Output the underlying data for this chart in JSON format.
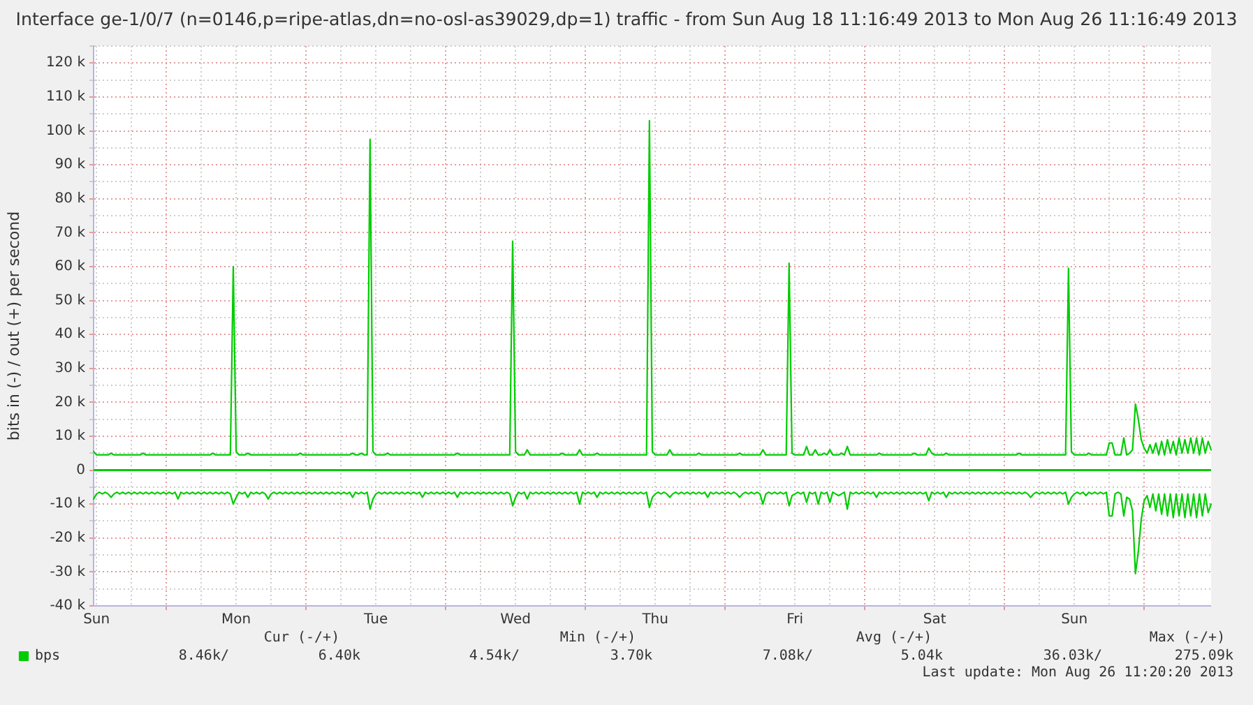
{
  "chart_data": {
    "type": "line",
    "title": "Interface ge-1/0/7 (n=0146,p=ripe-atlas,dn=no-osl-as39029,dp=1) traffic - from Sun Aug 18 11:16:49 2013 to Mon Aug 26 11:16:49 2013",
    "ylabel": "bits in (-) / out (+) per second",
    "annotations": [
      "Cur (-/+)",
      "Min (-/+)",
      "Avg (-/+)",
      "Max (-/+)",
      "8.46k/",
      "6.40k",
      "4.54k/",
      "3.70k",
      "7.08k/",
      "5.04k",
      "36.03k/",
      "275.09k",
      "Last update: Mon Aug 26 11:20:20 2013"
    ],
    "categories": [
      null,
      "Sun",
      null,
      null,
      null,
      null,
      null,
      null,
      null,
      null,
      null,
      null,
      null,
      null,
      null,
      null,
      null,
      null,
      null,
      null,
      null,
      null,
      null,
      null,
      null,
      null,
      null,
      null,
      null,
      null,
      null,
      null,
      null,
      null,
      null,
      null,
      null,
      null,
      null,
      null,
      null,
      null,
      null,
      null,
      null,
      null,
      null,
      null,
      null,
      "Mon",
      null,
      null,
      null,
      null,
      null,
      null,
      null,
      null,
      null,
      null,
      null,
      null,
      null,
      null,
      null,
      null,
      null,
      null,
      null,
      null,
      null,
      null,
      null,
      null,
      null,
      null,
      null,
      null,
      null,
      null,
      null,
      null,
      null,
      null,
      null,
      null,
      null,
      null,
      null,
      null,
      null,
      null,
      null,
      null,
      null,
      null,
      null,
      "Tue",
      null,
      null,
      null,
      null,
      null,
      null,
      null,
      null,
      null,
      null,
      null,
      null,
      null,
      null,
      null,
      null,
      null,
      null,
      null,
      null,
      null,
      null,
      null,
      null,
      null,
      null,
      null,
      null,
      null,
      null,
      null,
      null,
      null,
      null,
      null,
      null,
      null,
      null,
      null,
      null,
      null,
      null,
      null,
      null,
      null,
      null,
      null,
      "Wed",
      null,
      null,
      null,
      null,
      null,
      null,
      null,
      null,
      null,
      null,
      null,
      null,
      null,
      null,
      null,
      null,
      null,
      null,
      null,
      null,
      null,
      null,
      null,
      null,
      null,
      null,
      null,
      null,
      null,
      null,
      null,
      null,
      null,
      null,
      null,
      null,
      null,
      null,
      null,
      null,
      null,
      null,
      null,
      null,
      null,
      null,
      null,
      "Thu",
      null,
      null,
      null,
      null,
      null,
      null,
      null,
      null,
      null,
      null,
      null,
      null,
      null,
      null,
      null,
      null,
      null,
      null,
      null,
      null,
      null,
      null,
      null,
      null,
      null,
      null,
      null,
      null,
      null,
      null,
      null,
      null,
      null,
      null,
      null,
      null,
      null,
      null,
      null,
      null,
      null,
      null,
      null,
      null,
      null,
      null,
      null,
      "Fri",
      null,
      null,
      null,
      null,
      null,
      null,
      null,
      null,
      null,
      null,
      null,
      null,
      null,
      null,
      null,
      null,
      null,
      null,
      null,
      null,
      null,
      null,
      null,
      null,
      null,
      null,
      null,
      null,
      null,
      null,
      null,
      null,
      null,
      null,
      null,
      null,
      null,
      null,
      null,
      null,
      null,
      null,
      null,
      null,
      null,
      null,
      null,
      "Sat",
      null,
      null,
      null,
      null,
      null,
      null,
      null,
      null,
      null,
      null,
      null,
      null,
      null,
      null,
      null,
      null,
      null,
      null,
      null,
      null,
      null,
      null,
      null,
      null,
      null,
      null,
      null,
      null,
      null,
      null,
      null,
      null,
      null,
      null,
      null,
      null,
      null,
      null,
      null,
      null,
      null,
      null,
      null,
      null,
      null,
      null,
      null,
      "Sun",
      null,
      null,
      null,
      null,
      null,
      null,
      null,
      null,
      null,
      null,
      null,
      null,
      null,
      null,
      null,
      null,
      null,
      null,
      null,
      null,
      null,
      null,
      null,
      null,
      null,
      null,
      null,
      null,
      null,
      null,
      null,
      null,
      null,
      null,
      null,
      null,
      null,
      null,
      null,
      null,
      null,
      null,
      null,
      null,
      null,
      null,
      null
    ],
    "ylim": [
      -40000,
      125000
    ],
    "yticks": [
      {
        "value": -40000,
        "label": "-40 k"
      },
      {
        "value": -35000,
        "label": null
      },
      {
        "value": -30000,
        "label": "-30 k"
      },
      {
        "value": -25000,
        "label": null
      },
      {
        "value": -20000,
        "label": "-20 k"
      },
      {
        "value": -15000,
        "label": null
      },
      {
        "value": -10000,
        "label": "-10 k"
      },
      {
        "value": -5000,
        "label": null
      },
      0,
      {
        "value": 5000,
        "label": null
      },
      {
        "value": 10000,
        "label": "10 k"
      },
      {
        "value": 15000,
        "label": null
      },
      {
        "value": 20000,
        "label": "20 k"
      },
      {
        "value": 25000,
        "label": null
      },
      {
        "value": 30000,
        "label": "30 k"
      },
      {
        "value": 35000,
        "label": null
      },
      {
        "value": 40000,
        "label": "40 k"
      },
      {
        "value": 45000,
        "label": null
      },
      {
        "value": 50000,
        "label": "50 k"
      },
      {
        "value": 55000,
        "label": null
      },
      {
        "value": 60000,
        "label": "60 k"
      },
      {
        "value": 65000,
        "label": null
      },
      {
        "value": 70000,
        "label": "70 k"
      },
      {
        "value": 75000,
        "label": null
      },
      {
        "value": 80000,
        "label": "80 k"
      },
      {
        "value": 85000,
        "label": null
      },
      {
        "value": 90000,
        "label": "90 k"
      },
      {
        "value": 95000,
        "label": null
      },
      {
        "value": 100000,
        "label": "100 k"
      },
      {
        "value": 105000,
        "label": null
      },
      {
        "value": 110000,
        "label": "110 k"
      },
      {
        "value": 115000,
        "label": null
      },
      {
        "value": 120000,
        "label": "120 k"
      },
      {
        "value": 125000,
        "label": null
      }
    ],
    "grid": true,
    "legend": "bottom left",
    "marker": "none",
    "line_style": "solid",
    "ref_lines": [
      {
        "axis": "y",
        "value": 0,
        "color": "#00cc00"
      }
    ],
    "series": [
      {
        "name": "bps",
        "color": "#00cc00",
        "values": [
          5500,
          4500,
          4500,
          4500,
          4500,
          4500,
          5000,
          4500,
          4500,
          4500,
          4500,
          4500,
          4500,
          4500,
          4500,
          4500,
          4500,
          5000,
          4500,
          4500,
          4500,
          4500,
          4500,
          4500,
          4500,
          4500,
          4500,
          4500,
          4500,
          4500,
          4500,
          4500,
          4500,
          4500,
          4500,
          4500,
          4500,
          4500,
          4500,
          4500,
          4500,
          5000,
          4500,
          4500,
          4500,
          4500,
          4500,
          4500,
          60000,
          5500,
          4500,
          4500,
          4500,
          5000,
          4500,
          4500,
          4500,
          4500,
          4500,
          4500,
          4500,
          4500,
          4500,
          4500,
          4500,
          4500,
          4500,
          4500,
          4500,
          4500,
          4500,
          5000,
          4500,
          4500,
          4500,
          4500,
          4500,
          4500,
          4500,
          4500,
          4500,
          4500,
          4500,
          4500,
          4500,
          4500,
          4500,
          4500,
          4500,
          5000,
          4500,
          4500,
          5000,
          4500,
          4500,
          97500,
          5500,
          4500,
          4500,
          4500,
          4500,
          5000,
          4500,
          4500,
          4500,
          4500,
          4500,
          4500,
          4500,
          4500,
          4500,
          4500,
          4500,
          4500,
          4500,
          4500,
          4500,
          4500,
          4500,
          4500,
          4500,
          4500,
          4500,
          4500,
          4500,
          5000,
          4500,
          4500,
          4500,
          4500,
          4500,
          4500,
          4500,
          4500,
          4500,
          4500,
          4500,
          4500,
          4500,
          4500,
          4500,
          4500,
          4500,
          4500,
          67500,
          5500,
          4500,
          4500,
          4500,
          6000,
          4500,
          4500,
          4500,
          4500,
          4500,
          4500,
          4500,
          4500,
          4500,
          4500,
          4500,
          5000,
          4500,
          4500,
          4500,
          4500,
          4500,
          6000,
          4500,
          4500,
          4500,
          4500,
          4500,
          5000,
          4500,
          4500,
          4500,
          4500,
          4500,
          4500,
          4500,
          4500,
          4500,
          4500,
          4500,
          4500,
          4500,
          4500,
          4500,
          4500,
          4500,
          103000,
          5500,
          4500,
          4500,
          4500,
          4500,
          4500,
          6000,
          4500,
          4500,
          4500,
          4500,
          4500,
          4500,
          4500,
          4500,
          4500,
          5000,
          4500,
          4500,
          4500,
          4500,
          4500,
          4500,
          4500,
          4500,
          4500,
          4500,
          4500,
          4500,
          4500,
          5000,
          4500,
          4500,
          4500,
          4500,
          4500,
          4500,
          4500,
          6000,
          4500,
          4500,
          4500,
          4500,
          4500,
          4500,
          4500,
          4500,
          61000,
          5000,
          4500,
          4500,
          4500,
          4500,
          7000,
          4500,
          4500,
          6000,
          4500,
          4500,
          5000,
          4500,
          6000,
          4500,
          4500,
          4500,
          5000,
          4500,
          7000,
          4500,
          4500,
          4500,
          4500,
          4500,
          4500,
          4500,
          4500,
          4500,
          4500,
          5000,
          4500,
          4500,
          4500,
          4500,
          4500,
          4500,
          4500,
          4500,
          4500,
          4500,
          4500,
          5000,
          4500,
          4500,
          4500,
          4500,
          6500,
          5000,
          4500,
          4500,
          4500,
          4500,
          5000,
          4500,
          4500,
          4500,
          4500,
          4500,
          4500,
          4500,
          4500,
          4500,
          4500,
          4500,
          4500,
          4500,
          4500,
          4500,
          4500,
          4500,
          4500,
          4500,
          4500,
          4500,
          4500,
          4500,
          4500,
          5000,
          4500,
          4500,
          4500,
          4500,
          4500,
          4500,
          4500,
          4500,
          4500,
          4500,
          4500,
          4500,
          4500,
          4500,
          4500,
          4500,
          59500,
          5500,
          4500,
          4500,
          4500,
          4500,
          4500,
          5000,
          4500,
          4500,
          4500,
          4500,
          4500,
          4500,
          8000,
          8000,
          4500,
          4500,
          4500,
          9500,
          4500,
          5000,
          6000,
          19500,
          15000,
          9000,
          6500,
          5000,
          7500,
          5000,
          8000,
          4500,
          8500,
          4500,
          9000,
          5000,
          8500,
          4500,
          9500,
          5000,
          9000,
          5000,
          9500,
          5000,
          9500,
          4500,
          9500,
          5000,
          8500,
          6000
        ]
      },
      {
        "color": "#00cc00",
        "values": [
          -8500,
          -7000,
          -6500,
          -7000,
          -6500,
          -7000,
          -8000,
          -7000,
          -6500,
          -7000,
          -6500,
          -7000,
          -6500,
          -7000,
          -6500,
          -7000,
          -6500,
          -7000,
          -6500,
          -7000,
          -6500,
          -7000,
          -6500,
          -7000,
          -6500,
          -7000,
          -6500,
          -7000,
          -6500,
          -8500,
          -6500,
          -7000,
          -6500,
          -7000,
          -6500,
          -7000,
          -6500,
          -7000,
          -6500,
          -7000,
          -6500,
          -7000,
          -6500,
          -7000,
          -6500,
          -7000,
          -6500,
          -7000,
          -10000,
          -8000,
          -6500,
          -7000,
          -6500,
          -8000,
          -6500,
          -7000,
          -6500,
          -7000,
          -6500,
          -7000,
          -8500,
          -7000,
          -6500,
          -7000,
          -6500,
          -7000,
          -6500,
          -7000,
          -6500,
          -7000,
          -6500,
          -7000,
          -6500,
          -7000,
          -6500,
          -7000,
          -6500,
          -7000,
          -6500,
          -7000,
          -6500,
          -7000,
          -6500,
          -7000,
          -6500,
          -7000,
          -6500,
          -7000,
          -6500,
          -8000,
          -6500,
          -7000,
          -6500,
          -7000,
          -6500,
          -11500,
          -8500,
          -7000,
          -6500,
          -7000,
          -6500,
          -7000,
          -6500,
          -7000,
          -6500,
          -7000,
          -6500,
          -7000,
          -6500,
          -7000,
          -6500,
          -7000,
          -6500,
          -8000,
          -6500,
          -7000,
          -6500,
          -7000,
          -6500,
          -7000,
          -6500,
          -7000,
          -6500,
          -7000,
          -6500,
          -8000,
          -6500,
          -7000,
          -6500,
          -7000,
          -6500,
          -7000,
          -6500,
          -7000,
          -6500,
          -7000,
          -6500,
          -7000,
          -6500,
          -7000,
          -6500,
          -7000,
          -6500,
          -7000,
          -10500,
          -8000,
          -6500,
          -7000,
          -6500,
          -8500,
          -6500,
          -7000,
          -6500,
          -7000,
          -6500,
          -7000,
          -6500,
          -7000,
          -6500,
          -7000,
          -6500,
          -7000,
          -6500,
          -7000,
          -6500,
          -7000,
          -6500,
          -10000,
          -6500,
          -7000,
          -6500,
          -7000,
          -6500,
          -8000,
          -6500,
          -7000,
          -6500,
          -7000,
          -6500,
          -7000,
          -6500,
          -7000,
          -6500,
          -7000,
          -6500,
          -7000,
          -6500,
          -7000,
          -6500,
          -7000,
          -6500,
          -11000,
          -8000,
          -7000,
          -6500,
          -7000,
          -6500,
          -7000,
          -8000,
          -7000,
          -6500,
          -7000,
          -6500,
          -7000,
          -6500,
          -7000,
          -6500,
          -7000,
          -6500,
          -7000,
          -6500,
          -8000,
          -6500,
          -7000,
          -6500,
          -7000,
          -6500,
          -7000,
          -6500,
          -7000,
          -6500,
          -7000,
          -8000,
          -7000,
          -6500,
          -7000,
          -6500,
          -7000,
          -6500,
          -7000,
          -10000,
          -7000,
          -6500,
          -7000,
          -6500,
          -7000,
          -6500,
          -7000,
          -6500,
          -10500,
          -7500,
          -7000,
          -6500,
          -7000,
          -6500,
          -9500,
          -6500,
          -7000,
          -6500,
          -10000,
          -6500,
          -7000,
          -6500,
          -9500,
          -6500,
          -7000,
          -7500,
          -7000,
          -6500,
          -11500,
          -6500,
          -7000,
          -6500,
          -7000,
          -6500,
          -7000,
          -6500,
          -7000,
          -6500,
          -8000,
          -6500,
          -7000,
          -6500,
          -7000,
          -6500,
          -7000,
          -6500,
          -7000,
          -6500,
          -7000,
          -6500,
          -7000,
          -6500,
          -7000,
          -6500,
          -7000,
          -6500,
          -9000,
          -6500,
          -7000,
          -6500,
          -7000,
          -6500,
          -8000,
          -6500,
          -7000,
          -6500,
          -7000,
          -6500,
          -7000,
          -6500,
          -7000,
          -6500,
          -7000,
          -6500,
          -7000,
          -6500,
          -7000,
          -6500,
          -7000,
          -6500,
          -7000,
          -6500,
          -7000,
          -6500,
          -7000,
          -6500,
          -7000,
          -6500,
          -7000,
          -6500,
          -7000,
          -8000,
          -7000,
          -6500,
          -7000,
          -6500,
          -7000,
          -6500,
          -7000,
          -6500,
          -7000,
          -6500,
          -7000,
          -6500,
          -10000,
          -8000,
          -7000,
          -6500,
          -7000,
          -6500,
          -7500,
          -6500,
          -7000,
          -6500,
          -7000,
          -6500,
          -7000,
          -6500,
          -13500,
          -13500,
          -7000,
          -6500,
          -7000,
          -13500,
          -8000,
          -8500,
          -12000,
          -30500,
          -24000,
          -14500,
          -9000,
          -7500,
          -11000,
          -7000,
          -12000,
          -7000,
          -13000,
          -7000,
          -13500,
          -7000,
          -14000,
          -7000,
          -13500,
          -7000,
          -14000,
          -7000,
          -13500,
          -7000,
          -14000,
          -7000,
          -13500,
          -7000,
          -12500,
          -10000
        ]
      }
    ]
  }
}
